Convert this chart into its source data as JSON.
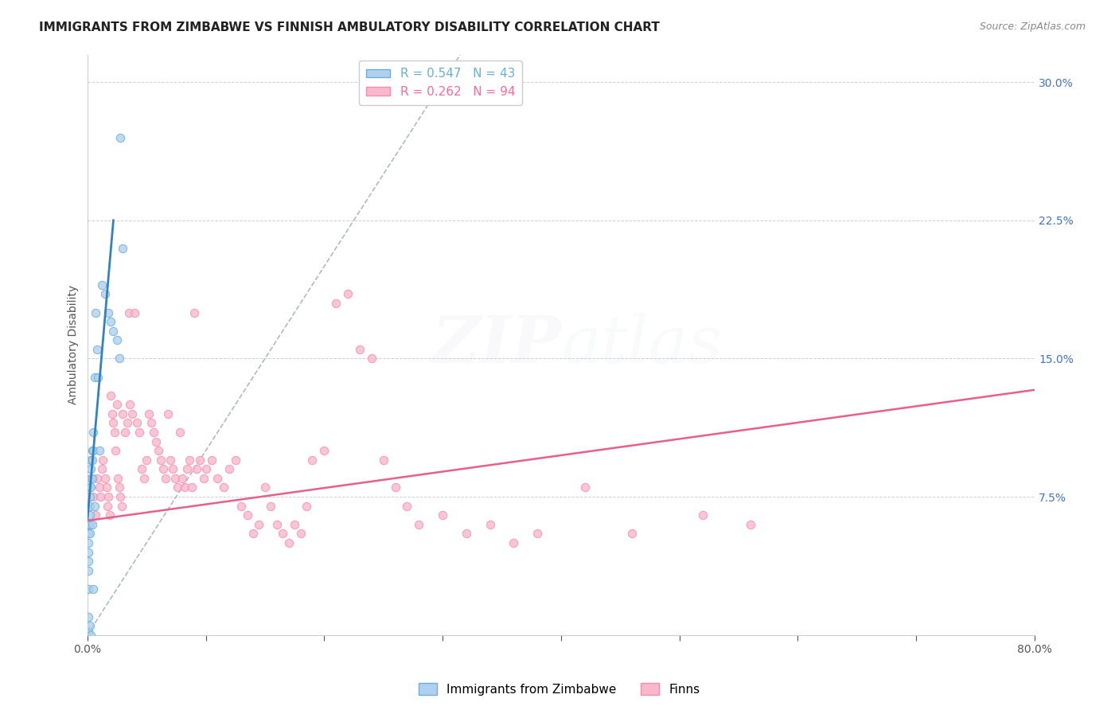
{
  "title": "IMMIGRANTS FROM ZIMBABWE VS FINNISH AMBULATORY DISABILITY CORRELATION CHART",
  "source": "Source: ZipAtlas.com",
  "ylabel": "Ambulatory Disability",
  "xlim": [
    0.0,
    0.8
  ],
  "ylim": [
    0.0,
    0.315
  ],
  "legend_entries": [
    {
      "label": "R = 0.547   N = 43",
      "color": "#6baed6"
    },
    {
      "label": "R = 0.262   N = 94",
      "color": "#fb6a9a"
    }
  ],
  "blue_scatter_x": [
    0.001,
    0.001,
    0.001,
    0.001,
    0.001,
    0.001,
    0.001,
    0.001,
    0.001,
    0.002,
    0.002,
    0.002,
    0.002,
    0.002,
    0.002,
    0.002,
    0.003,
    0.003,
    0.003,
    0.003,
    0.003,
    0.004,
    0.004,
    0.004,
    0.004,
    0.005,
    0.005,
    0.005,
    0.006,
    0.006,
    0.007,
    0.008,
    0.009,
    0.01,
    0.012,
    0.015,
    0.018,
    0.02,
    0.022,
    0.025,
    0.027,
    0.028,
    0.03
  ],
  "blue_scatter_y": [
    0.06,
    0.055,
    0.05,
    0.045,
    0.04,
    0.035,
    0.025,
    0.01,
    0.002,
    0.08,
    0.075,
    0.07,
    0.065,
    0.06,
    0.055,
    0.005,
    0.095,
    0.09,
    0.085,
    0.08,
    0.0,
    0.1,
    0.095,
    0.085,
    0.06,
    0.11,
    0.1,
    0.025,
    0.14,
    0.07,
    0.175,
    0.155,
    0.14,
    0.1,
    0.19,
    0.185,
    0.175,
    0.17,
    0.165,
    0.16,
    0.15,
    0.27,
    0.21
  ],
  "pink_scatter_x": [
    0.005,
    0.007,
    0.008,
    0.01,
    0.011,
    0.012,
    0.013,
    0.015,
    0.016,
    0.017,
    0.018,
    0.019,
    0.02,
    0.021,
    0.022,
    0.023,
    0.024,
    0.025,
    0.026,
    0.027,
    0.028,
    0.029,
    0.03,
    0.032,
    0.034,
    0.035,
    0.036,
    0.038,
    0.04,
    0.042,
    0.044,
    0.046,
    0.048,
    0.05,
    0.052,
    0.054,
    0.056,
    0.058,
    0.06,
    0.062,
    0.064,
    0.066,
    0.068,
    0.07,
    0.072,
    0.074,
    0.076,
    0.078,
    0.08,
    0.082,
    0.084,
    0.086,
    0.088,
    0.09,
    0.092,
    0.095,
    0.098,
    0.1,
    0.105,
    0.11,
    0.115,
    0.12,
    0.125,
    0.13,
    0.135,
    0.14,
    0.145,
    0.15,
    0.155,
    0.16,
    0.165,
    0.17,
    0.175,
    0.18,
    0.185,
    0.19,
    0.2,
    0.21,
    0.22,
    0.23,
    0.24,
    0.25,
    0.26,
    0.27,
    0.28,
    0.3,
    0.32,
    0.34,
    0.36,
    0.38,
    0.42,
    0.46,
    0.52,
    0.56
  ],
  "pink_scatter_y": [
    0.075,
    0.065,
    0.085,
    0.08,
    0.075,
    0.09,
    0.095,
    0.085,
    0.08,
    0.07,
    0.075,
    0.065,
    0.13,
    0.12,
    0.115,
    0.11,
    0.1,
    0.125,
    0.085,
    0.08,
    0.075,
    0.07,
    0.12,
    0.11,
    0.115,
    0.175,
    0.125,
    0.12,
    0.175,
    0.115,
    0.11,
    0.09,
    0.085,
    0.095,
    0.12,
    0.115,
    0.11,
    0.105,
    0.1,
    0.095,
    0.09,
    0.085,
    0.12,
    0.095,
    0.09,
    0.085,
    0.08,
    0.11,
    0.085,
    0.08,
    0.09,
    0.095,
    0.08,
    0.175,
    0.09,
    0.095,
    0.085,
    0.09,
    0.095,
    0.085,
    0.08,
    0.09,
    0.095,
    0.07,
    0.065,
    0.055,
    0.06,
    0.08,
    0.07,
    0.06,
    0.055,
    0.05,
    0.06,
    0.055,
    0.07,
    0.095,
    0.1,
    0.18,
    0.185,
    0.155,
    0.15,
    0.095,
    0.08,
    0.07,
    0.06,
    0.065,
    0.055,
    0.06,
    0.05,
    0.055,
    0.08,
    0.055,
    0.065,
    0.06
  ],
  "blue_line_x": [
    0.0,
    0.022
  ],
  "blue_line_y": [
    0.062,
    0.225
  ],
  "pink_line_x": [
    0.0,
    0.8
  ],
  "pink_line_y": [
    0.062,
    0.133
  ],
  "ref_line_x": [
    0.0,
    0.315
  ],
  "ref_line_y": [
    0.0,
    0.315
  ],
  "blue_line_color": "#3182bd",
  "pink_line_color": "#e8608a",
  "scatter_blue_color": "#afd0ee",
  "scatter_pink_color": "#f9b8cb",
  "scatter_blue_edge": "#6baed6",
  "scatter_pink_edge": "#f48fb1",
  "scatter_alpha": 0.8,
  "scatter_size": 55,
  "grid_color": "#d0d0d0",
  "background_color": "#ffffff",
  "title_fontsize": 11,
  "axis_label_fontsize": 10,
  "tick_fontsize": 10,
  "right_tick_color": "#4472c4",
  "watermark_alpha": 0.06
}
